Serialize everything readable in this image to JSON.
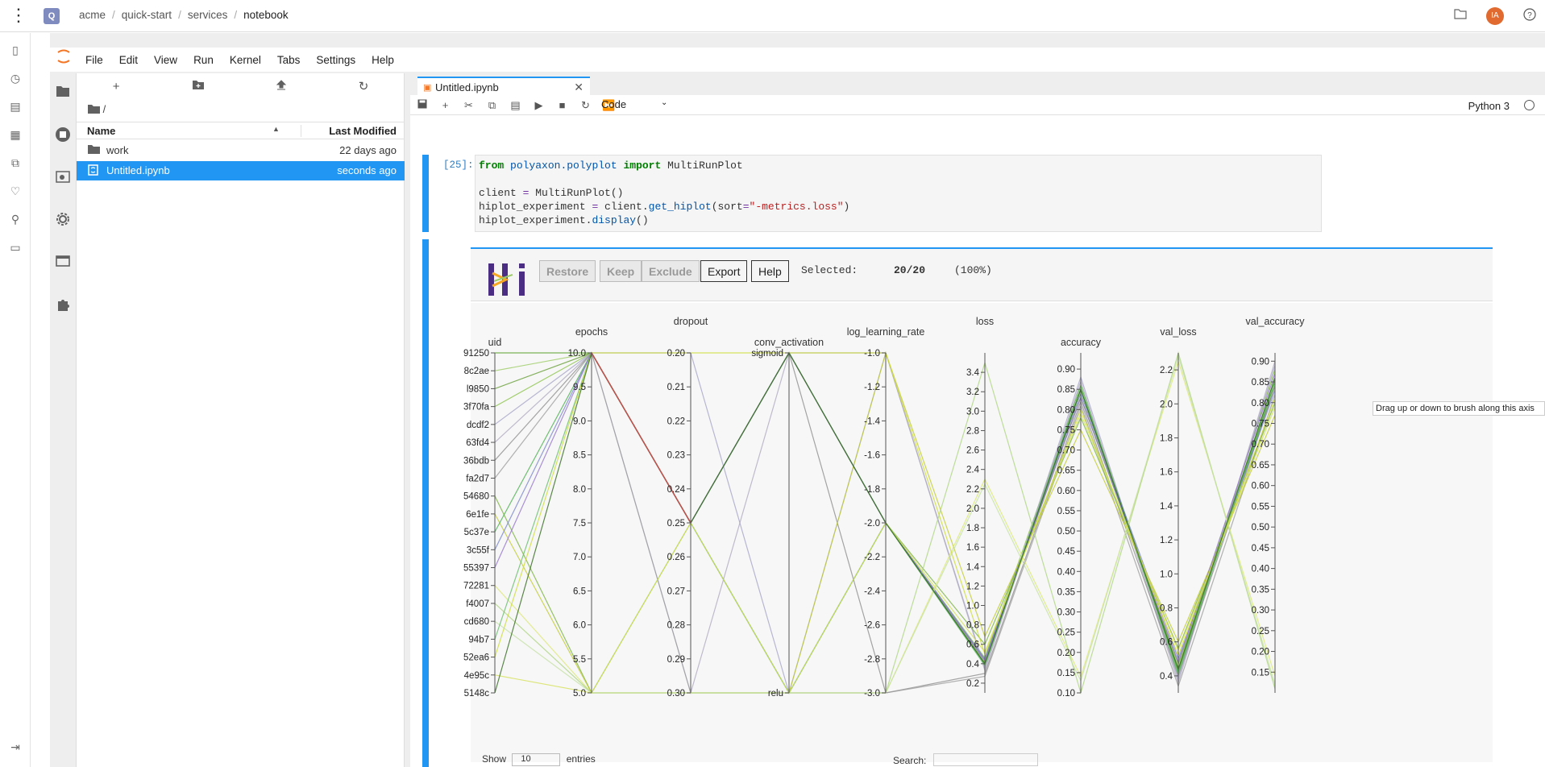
{
  "topbar": {
    "breadcrumbs": [
      "acme",
      "quick-start",
      "services",
      "notebook"
    ],
    "avatar_initials": "IA"
  },
  "menubar": {
    "items": [
      "File",
      "Edit",
      "View",
      "Run",
      "Kernel",
      "Tabs",
      "Settings",
      "Help"
    ]
  },
  "filebrowser": {
    "path": "/",
    "col_name": "Name",
    "col_modified": "Last Modified",
    "rows": [
      {
        "name": "work",
        "modified": "22 days ago",
        "icon": "folder-icon"
      },
      {
        "name": "Untitled.ipynb",
        "modified": "seconds ago",
        "icon": "notebook-icon"
      }
    ]
  },
  "tab": {
    "label": "Untitled.ipynb"
  },
  "toolbar": {
    "cell_type": "Code",
    "kernel": "Python 3"
  },
  "cell": {
    "prompt": "[25]:",
    "code_lines": [
      "from polyaxon.polyplot import MultiRunPlot",
      "",
      "client = MultiRunPlot()",
      "hiplot_experiment = client.get_hiplot(sort=\"-metrics.loss\")",
      "hiplot_experiment.display()"
    ]
  },
  "hiplot": {
    "buttons": [
      "Restore",
      "Keep",
      "Exclude",
      "Export",
      "Help"
    ],
    "selected_label": "Selected:",
    "selected_count": "20/20",
    "selected_pct": "(100%)",
    "tooltip": "Drag up or down to brush along this axis",
    "show_label": "Show",
    "show_value": "10",
    "entries_label": "entries",
    "search_label": "Search:"
  },
  "chart_data": {
    "type": "parallel-coordinates",
    "axes": [
      {
        "name": "uid",
        "ticks": [
          "91250",
          "8c2ae",
          "l9850",
          "3f70fa",
          "dcdf2",
          "63fd4",
          "36bdb",
          "fa2d7",
          "54680",
          "6e1fe",
          "5c37e",
          "3c55f",
          "55397",
          "72281",
          "f4007",
          "cd680",
          "94b7",
          "52ea6",
          "4e95c",
          "5148c"
        ]
      },
      {
        "name": "epochs",
        "ticks": [
          "10.0",
          "9.5",
          "9.0",
          "8.5",
          "8.0",
          "7.5",
          "7.0",
          "6.5",
          "6.0",
          "5.5",
          "5.0"
        ],
        "range": [
          5.0,
          10.0
        ]
      },
      {
        "name": "dropout",
        "ticks": [
          "0.20",
          "0.21",
          "0.22",
          "0.23",
          "0.24",
          "0.25",
          "0.26",
          "0.27",
          "0.28",
          "0.29",
          "0.30"
        ],
        "range": [
          0.2,
          0.3
        ]
      },
      {
        "name": "conv_activation",
        "ticks": [
          "sigmoid",
          "relu"
        ]
      },
      {
        "name": "log_learning_rate",
        "ticks": [
          "-1.0",
          "-1.2",
          "-1.4",
          "-1.6",
          "-1.8",
          "-2.0",
          "-2.2",
          "-2.4",
          "-2.6",
          "-2.8",
          "-3.0"
        ],
        "range": [
          -3.0,
          -1.0
        ]
      },
      {
        "name": "loss",
        "ticks": [
          "3.4",
          "3.2",
          "3.0",
          "2.8",
          "2.6",
          "2.4",
          "2.2",
          "2.0",
          "1.8",
          "1.6",
          "1.4",
          "1.2",
          "1.0",
          "0.8",
          "0.6",
          "0.4",
          "0.2"
        ],
        "range": [
          0.1,
          3.6
        ]
      },
      {
        "name": "accuracy",
        "ticks": [
          "0.90",
          "0.85",
          "0.80",
          "0.75",
          "0.70",
          "0.65",
          "0.60",
          "0.55",
          "0.50",
          "0.45",
          "0.40",
          "0.35",
          "0.30",
          "0.25",
          "0.20",
          "0.15",
          "0.10"
        ],
        "range": [
          0.1,
          0.94
        ]
      },
      {
        "name": "val_loss",
        "ticks": [
          "2.2",
          "2.0",
          "1.8",
          "1.6",
          "1.4",
          "1.2",
          "1.0",
          "0.8",
          "0.6",
          "0.4"
        ],
        "range": [
          0.3,
          2.3
        ]
      },
      {
        "name": "val_accuracy",
        "ticks": [
          "0.90",
          "0.85",
          "0.80",
          "0.75",
          "0.70",
          "0.65",
          "0.60",
          "0.55",
          "0.50",
          "0.45",
          "0.40",
          "0.35",
          "0.30",
          "0.25",
          "0.20",
          "0.15"
        ],
        "range": [
          0.1,
          0.92
        ]
      }
    ],
    "runs": [
      {
        "uid": 0,
        "epochs": 10,
        "dropout": 0.25,
        "act": "sigmoid",
        "lr": -2.0,
        "loss": 0.41,
        "acc": 0.85,
        "vloss": 0.43,
        "vacc": 0.85,
        "color": "#5aa02c"
      },
      {
        "uid": 1,
        "epochs": 10,
        "dropout": 0.25,
        "act": "sigmoid",
        "lr": -2.0,
        "loss": 0.42,
        "acc": 0.84,
        "vloss": 0.45,
        "vacc": 0.86,
        "color": "#9ccc65"
      },
      {
        "uid": 2,
        "epochs": 10,
        "dropout": 0.25,
        "act": "sigmoid",
        "lr": -2.0,
        "loss": 0.44,
        "acc": 0.83,
        "vloss": 0.47,
        "vacc": 0.84,
        "color": "#689f38"
      },
      {
        "uid": 3,
        "epochs": 10,
        "dropout": 0.25,
        "act": "relu",
        "lr": -2.0,
        "loss": 0.46,
        "acc": 0.86,
        "vloss": 0.44,
        "vacc": 0.88,
        "color": "#8bc34a"
      },
      {
        "uid": 4,
        "epochs": 10,
        "dropout": 0.2,
        "act": "relu",
        "lr": -1.0,
        "loss": 0.35,
        "acc": 0.88,
        "vloss": 0.38,
        "vacc": 0.89,
        "color": "#a5a5c8"
      },
      {
        "uid": 5,
        "epochs": 10,
        "dropout": 0.3,
        "act": "sigmoid",
        "lr": -1.0,
        "loss": 0.33,
        "acc": 0.87,
        "vloss": 0.36,
        "vacc": 0.9,
        "color": "#b0aac0"
      },
      {
        "uid": 6,
        "epochs": 10,
        "dropout": 0.25,
        "act": "sigmoid",
        "lr": -3.0,
        "loss": 0.3,
        "acc": 0.82,
        "vloss": 0.4,
        "vacc": 0.84,
        "color": "#8d8d8d"
      },
      {
        "uid": 7,
        "epochs": 10,
        "dropout": 0.3,
        "act": "relu",
        "lr": -3.0,
        "loss": 0.27,
        "acc": 0.81,
        "vloss": 0.34,
        "vacc": 0.82,
        "color": "#9e9e9e"
      },
      {
        "uid": 8,
        "epochs": 5,
        "dropout": 0.25,
        "act": "sigmoid",
        "lr": -2.0,
        "loss": 0.6,
        "acc": 0.78,
        "vloss": 0.56,
        "vacc": 0.8,
        "color": "#7cb342"
      },
      {
        "uid": 9,
        "epochs": 5,
        "dropout": 0.3,
        "act": "relu",
        "lr": -1.0,
        "loss": 0.68,
        "acc": 0.75,
        "vloss": 0.6,
        "vacc": 0.77,
        "color": "#c0ca33"
      },
      {
        "uid": 10,
        "epochs": 10,
        "dropout": 0.25,
        "act": "sigmoid",
        "lr": -2.0,
        "loss": 0.39,
        "acc": 0.85,
        "vloss": 0.42,
        "vacc": 0.85,
        "color": "#4caf50"
      },
      {
        "uid": 11,
        "epochs": 10,
        "dropout": 0.25,
        "act": "relu",
        "lr": -2.0,
        "loss": 0.45,
        "acc": 0.84,
        "vloss": 0.5,
        "vacc": 0.83,
        "color": "#7986cb"
      },
      {
        "uid": 12,
        "epochs": 10,
        "dropout": 0.25,
        "act": "sigmoid",
        "lr": -2.0,
        "loss": 0.43,
        "acc": 0.83,
        "vloss": 0.48,
        "vacc": 0.87,
        "color": "#9575cd"
      },
      {
        "uid": 13,
        "epochs": 5,
        "dropout": 0.3,
        "act": "relu",
        "lr": -3.0,
        "loss": 2.3,
        "acc": 0.14,
        "vloss": 2.25,
        "vacc": 0.14,
        "color": "#dce775"
      },
      {
        "uid": 14,
        "epochs": 5,
        "dropout": 0.3,
        "act": "relu",
        "lr": -3.0,
        "loss": 3.5,
        "acc": 0.1,
        "vloss": 2.3,
        "vacc": 0.11,
        "color": "#aed581"
      },
      {
        "uid": 15,
        "epochs": 5,
        "dropout": 0.3,
        "act": "relu",
        "lr": -3.0,
        "loss": 2.25,
        "acc": 0.13,
        "vloss": 2.28,
        "vacc": 0.12,
        "color": "#c5e1a5"
      },
      {
        "uid": 16,
        "epochs": 10,
        "dropout": 0.25,
        "act": "relu",
        "lr": -2.0,
        "loss": 0.38,
        "acc": 0.86,
        "vloss": 0.41,
        "vacc": 0.86,
        "color": "#66bb6a"
      },
      {
        "uid": 17,
        "epochs": 10,
        "dropout": 0.2,
        "act": "sigmoid",
        "lr": -1.0,
        "loss": 0.5,
        "acc": 0.8,
        "vloss": 0.52,
        "vacc": 0.81,
        "color": "#cddc39"
      },
      {
        "uid": 18,
        "epochs": 5,
        "dropout": 0.25,
        "act": "relu",
        "lr": -2.0,
        "loss": 0.52,
        "acc": 0.79,
        "vloss": 0.55,
        "vacc": 0.79,
        "color": "#d4e157"
      },
      {
        "uid": 19,
        "epochs": 10,
        "dropout": 0.25,
        "act": "sigmoid",
        "lr": -2.0,
        "loss": 0.4,
        "acc": 0.85,
        "vloss": 0.44,
        "vacc": 0.86,
        "color": "#33691e"
      }
    ],
    "highlight_line": {
      "from_axis": "epochs",
      "to_axis": "dropout",
      "from": 10.0,
      "to": 0.25,
      "color": "#c0504d"
    },
    "colors": {
      "accent": "#2196f3",
      "hiplot_logo_purple": "#4b2e83",
      "hiplot_logo_orange": "#f5a623"
    }
  }
}
